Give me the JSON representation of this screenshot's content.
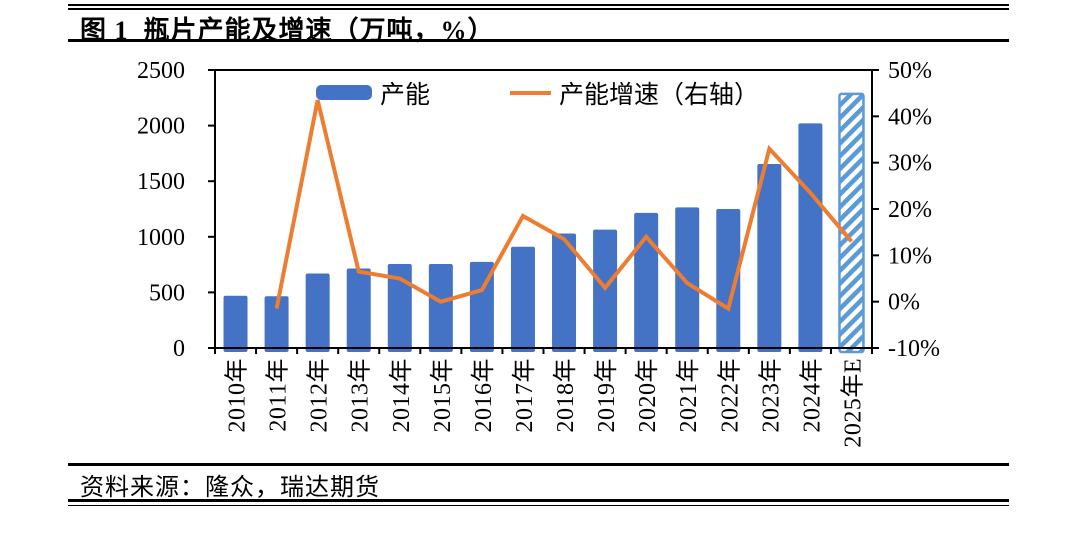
{
  "header": {
    "title": "图 1  瓶片产能及增速（万吨，%）"
  },
  "footer": {
    "source": "资料来源：隆众，瑞达期货"
  },
  "colors": {
    "bar": "#4472C4",
    "forecast_bar": "#5B9BD5",
    "line": "#ED7D31",
    "axis": "#000000"
  },
  "chart_data": {
    "type": "bar+line",
    "title": "瓶片产能及增速（万吨，%）",
    "categories": [
      "2010年",
      "2011年",
      "2012年",
      "2013年",
      "2014年",
      "2015年",
      "2016年",
      "2017年",
      "2018年",
      "2019年",
      "2020年",
      "2021年",
      "2022年",
      "2023年",
      "2024年",
      "2025年E"
    ],
    "series": [
      {
        "name": "产能",
        "type": "bar",
        "axis": "left",
        "unit": "万吨",
        "values": [
          470,
          465,
          670,
          715,
          755,
          755,
          775,
          910,
          1030,
          1065,
          1215,
          1265,
          1250,
          1655,
          2020,
          2285
        ]
      },
      {
        "name": "产能增速（右轴）",
        "type": "line",
        "axis": "right",
        "unit": "%",
        "values": [
          null,
          -1.5,
          43.5,
          6.5,
          5,
          0,
          2.5,
          18.5,
          13.5,
          3,
          14,
          4,
          -1.5,
          33,
          23.5,
          13
        ]
      }
    ],
    "left_axis": {
      "min": 0,
      "max": 2500,
      "step": 500,
      "tick_labels": [
        "0",
        "500",
        "1000",
        "1500",
        "2000",
        "2500"
      ]
    },
    "right_axis": {
      "min": -10,
      "max": 50,
      "step": 10,
      "tick_labels": [
        "-10%",
        "0%",
        "10%",
        "20%",
        "30%",
        "40%",
        "50%"
      ]
    },
    "forecast_index": 15,
    "legend_position": "top-inside",
    "grid": false
  }
}
